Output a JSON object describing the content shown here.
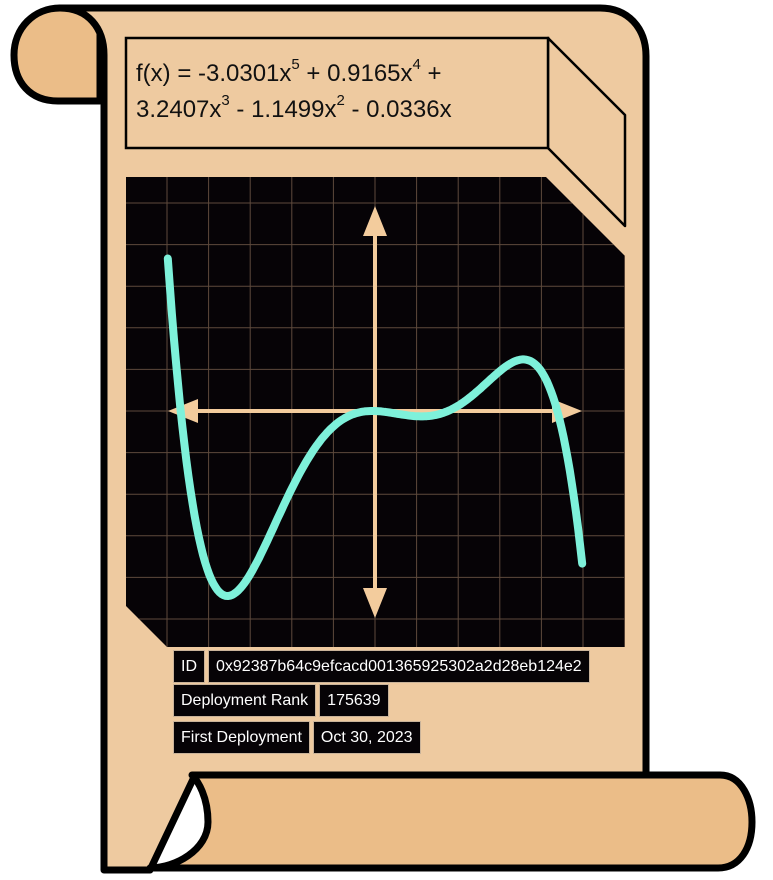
{
  "formula": {
    "line1": [
      {
        "t": "f(x) = -3.0301x"
      },
      {
        "sup": "5"
      },
      {
        "t": " + 0.9165x"
      },
      {
        "sup": "4"
      },
      {
        "t": " +"
      }
    ],
    "line2": [
      {
        "t": "3.2407x"
      },
      {
        "sup": "3"
      },
      {
        "t": " - 1.1499x"
      },
      {
        "sup": "2"
      },
      {
        "t": " - 0.0336x"
      }
    ]
  },
  "chart_data": {
    "type": "line",
    "function": {
      "coefficients_high_to_low": [
        -3.0301,
        0.9165,
        3.2407,
        -1.1499,
        -0.0336,
        0
      ]
    },
    "x_range": [
      -1.12,
      1.12
    ],
    "y_range": [
      -1.12,
      1.12
    ],
    "grid": true,
    "curve_x_domain": [
      -1.12,
      1.12
    ],
    "title": "",
    "xlabel": "",
    "ylabel": ""
  },
  "info": {
    "id_label": "ID",
    "id_value": "0x92387b64c9efcacd001365925302a2d28eb124e2",
    "rank_label": "Deployment Rank",
    "rank_value": "175639",
    "first_label": "First Deployment",
    "first_value": "Oct 30, 2023"
  },
  "colors": {
    "parchment": "#eecaa0",
    "roll": "#ebbd88",
    "outline": "#000000",
    "screen": "#060306",
    "grid": "#5e4a3c",
    "axis": "#f3cc9d",
    "curve": "#7ef1da"
  }
}
